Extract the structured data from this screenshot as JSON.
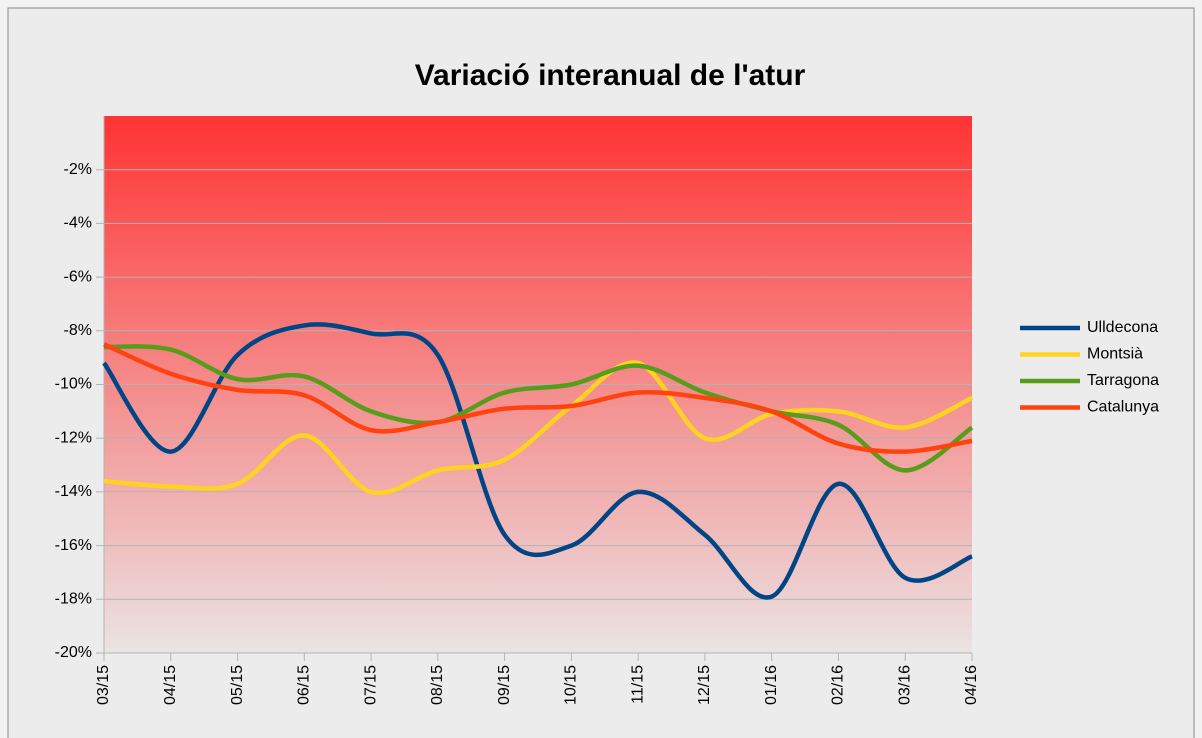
{
  "chart_data": {
    "type": "line",
    "title": "Variació interanual de l'atur",
    "categories": [
      "03/15",
      "04/15",
      "05/15",
      "06/15",
      "07/15",
      "08/15",
      "09/15",
      "10/15",
      "11/15",
      "12/15",
      "01/16",
      "02/16",
      "03/16",
      "04/16"
    ],
    "series": [
      {
        "name": "Ulldecona",
        "color": "#004586",
        "values": [
          -9.2,
          -12.5,
          -8.9,
          -7.8,
          -8.1,
          -8.9,
          -15.6,
          -16.0,
          -14.0,
          -15.6,
          -17.9,
          -13.7,
          -17.2,
          -16.4
        ]
      },
      {
        "name": "Montsià",
        "color": "#ffd320",
        "values": [
          -13.6,
          -13.8,
          -13.7,
          -11.9,
          -14.0,
          -13.2,
          -12.8,
          -10.8,
          -9.2,
          -12.0,
          -11.1,
          -11.0,
          -11.6,
          -10.5
        ]
      },
      {
        "name": "Tarragona",
        "color": "#579d1c",
        "values": [
          -8.6,
          -8.7,
          -9.8,
          -9.7,
          -11.0,
          -11.4,
          -10.3,
          -10.0,
          -9.3,
          -10.3,
          -11.0,
          -11.5,
          -13.2,
          -11.6
        ]
      },
      {
        "name": "Catalunya",
        "color": "#ff420e",
        "values": [
          -8.5,
          -9.6,
          -10.2,
          -10.4,
          -11.7,
          -11.4,
          -10.9,
          -10.8,
          -10.3,
          -10.5,
          -11.0,
          -12.2,
          -12.5,
          -12.1
        ]
      }
    ],
    "ylim": [
      -20,
      0
    ],
    "yticks": [
      {
        "value": -2,
        "label": "-2%"
      },
      {
        "value": -4,
        "label": "-4%"
      },
      {
        "value": -6,
        "label": "-6%"
      },
      {
        "value": -8,
        "label": "-8%"
      },
      {
        "value": -10,
        "label": "-10%"
      },
      {
        "value": -12,
        "label": "-12%"
      },
      {
        "value": -14,
        "label": "-14%"
      },
      {
        "value": -16,
        "label": "-16%"
      },
      {
        "value": -18,
        "label": "-18%"
      },
      {
        "value": -20,
        "label": "-20%"
      }
    ],
    "grid": true,
    "smooth": true,
    "legend": "right"
  }
}
